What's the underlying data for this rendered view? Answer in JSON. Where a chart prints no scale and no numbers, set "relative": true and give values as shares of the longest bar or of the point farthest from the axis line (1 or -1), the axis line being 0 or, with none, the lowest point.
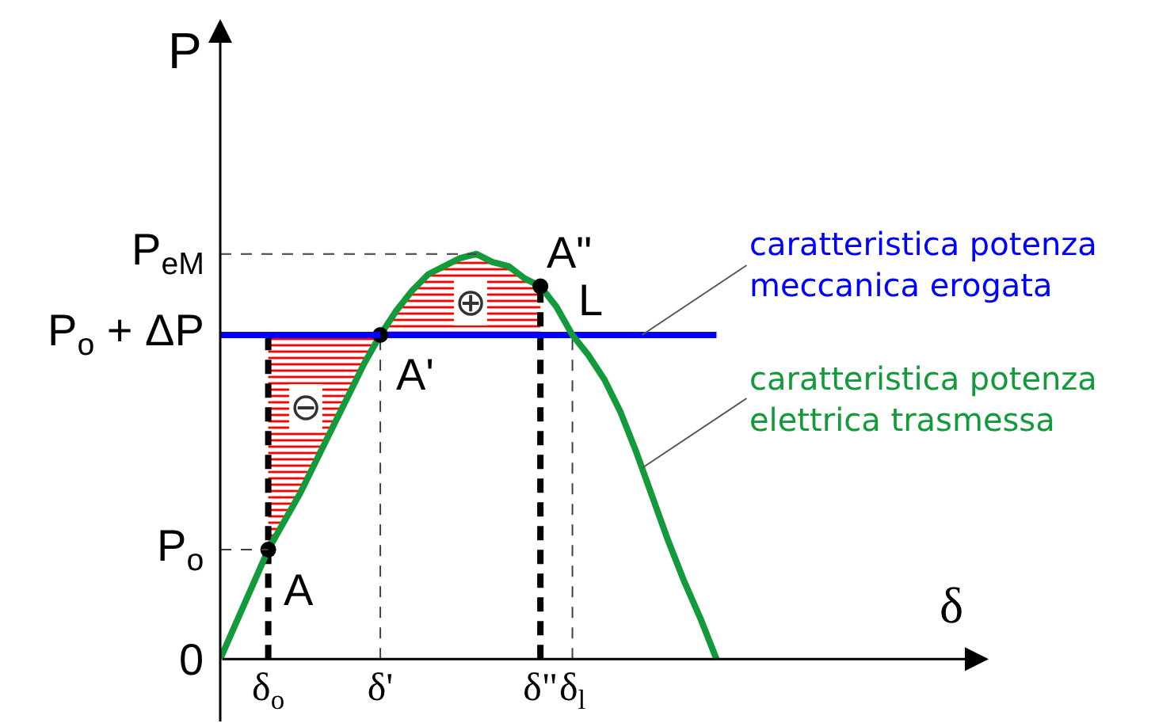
{
  "chart_data": {
    "type": "line",
    "relative": true,
    "xlabel": "δ",
    "ylabel": "P",
    "categories": [
      null,
      null,
      null,
      "δ$_{o}$",
      null,
      null,
      null,
      null,
      null,
      null,
      "δ'",
      null,
      null,
      null,
      null,
      null,
      null,
      null,
      null,
      null,
      "δ\"",
      null,
      "δ$_{l}$",
      null,
      null,
      null,
      null,
      null,
      null,
      null,
      null,
      null,
      null,
      null,
      null,
      null,
      null,
      null,
      null,
      null,
      null,
      null,
      null,
      null,
      null,
      null,
      null,
      null,
      null
    ],
    "grid": false,
    "series": [
      {
        "color": "#ff0000",
        "values": [
          null,
          null,
          null,
          null,
          null,
          null,
          null,
          null,
          null,
          null,
          null,
          null,
          null,
          null,
          null,
          null,
          null,
          null,
          null,
          null,
          null,
          null,
          null,
          null,
          null,
          null,
          null,
          null,
          null,
          null,
          null,
          null,
          null,
          null,
          null,
          null,
          null,
          null,
          null,
          null,
          null,
          null,
          null,
          null,
          null,
          null,
          null,
          null,
          null
        ],
        "lower": [
          null,
          null,
          null,
          null,
          null,
          null,
          null,
          null,
          null,
          null,
          0.8,
          0.8,
          0.8,
          0.8,
          0.8,
          0.8,
          0.8,
          0.8,
          0.8,
          0.8,
          0.8,
          null,
          null,
          null,
          null,
          null,
          null,
          null,
          null,
          null,
          null,
          null,
          null,
          null,
          null,
          null,
          null,
          null,
          null,
          null,
          null,
          null,
          null,
          null,
          null,
          null,
          null,
          null,
          null
        ],
        "upper": [
          null,
          null,
          null,
          null,
          null,
          null,
          null,
          null,
          null,
          null,
          0.8,
          0.86,
          0.91,
          0.95,
          0.97,
          0.99,
          1,
          0.98,
          0.97,
          0.94,
          0.92,
          null,
          null,
          null,
          null,
          null,
          null,
          null,
          null,
          null,
          null,
          null,
          null,
          null,
          null,
          null,
          null,
          null,
          null,
          null,
          null,
          null,
          null,
          null,
          null,
          null,
          null,
          null,
          null
        ]
      },
      {
        "color": "#ff0000",
        "values": [
          null,
          null,
          null,
          null,
          null,
          null,
          null,
          null,
          null,
          null,
          null,
          null,
          null,
          null,
          null,
          null,
          null,
          null,
          null,
          null,
          null,
          null,
          null,
          null,
          null,
          null,
          null,
          null,
          null,
          null,
          null,
          null,
          null,
          null,
          null,
          null,
          null,
          null,
          null,
          null,
          null,
          null,
          null,
          null,
          null,
          null,
          null,
          null,
          null
        ],
        "lower": [
          null,
          null,
          null,
          0.27,
          0.34,
          0.41,
          0.49,
          0.57,
          0.65,
          0.73,
          0.8,
          null,
          null,
          null,
          null,
          null,
          null,
          null,
          null,
          null,
          null,
          null,
          null,
          null,
          null,
          null,
          null,
          null,
          null,
          null,
          null,
          null,
          null,
          null,
          null,
          null,
          null,
          null,
          null,
          null,
          null,
          null,
          null,
          null,
          null,
          null,
          null,
          null,
          null
        ],
        "upper": [
          null,
          null,
          null,
          0.8,
          0.8,
          0.8,
          0.8,
          0.8,
          0.8,
          0.8,
          0.8,
          null,
          null,
          null,
          null,
          null,
          null,
          null,
          null,
          null,
          null,
          null,
          null,
          null,
          null,
          null,
          null,
          null,
          null,
          null,
          null,
          null,
          null,
          null,
          null,
          null,
          null,
          null,
          null,
          null,
          null,
          null,
          null,
          null,
          null,
          null,
          null,
          null,
          null
        ]
      },
      {
        "color": "#404040",
        "line_style": "dashed",
        "x": [
          "δ'",
          "δ'"
        ],
        "values": [
          0,
          0.8
        ]
      },
      {
        "color": "#404040",
        "line_style": "dashed",
        "x": [
          "δ$_{l}$",
          "δ$_{l}$"
        ],
        "values": [
          0,
          0.8
        ]
      },
      {
        "color": "#000000",
        "line_style": "dashed",
        "x": [
          "δ$_{o}$",
          "δ$_{o}$"
        ],
        "values": [
          0,
          0.8
        ]
      },
      {
        "color": "#000000",
        "line_style": "dashed",
        "x": [
          "δ\"",
          "δ\""
        ],
        "values": [
          0,
          0.92
        ]
      },
      {
        "name": "caratteristica potenza meccanica erogata",
        "color": "#0000ff",
        "values": [
          0.8,
          0.8,
          0.8,
          0.8,
          0.8,
          0.8,
          0.8,
          0.8,
          0.8,
          0.8,
          0.8,
          0.8,
          0.8,
          0.8,
          0.8,
          0.8,
          0.8,
          0.8,
          0.8,
          0.8,
          0.8,
          0.8,
          0.8,
          0.8,
          0.8,
          0.8,
          0.8,
          0.8,
          0.8,
          0.8,
          0.8,
          0.8,
          null,
          null,
          null,
          null,
          null,
          null,
          null,
          null,
          null,
          null,
          null,
          null,
          null,
          null,
          null,
          null,
          null
        ]
      },
      {
        "name": "caratteristica potenza elettrica trasmessa",
        "color": "#139a3a",
        "values": [
          0,
          0.09,
          0.18,
          0.27,
          0.34,
          0.41,
          0.49,
          0.57,
          0.65,
          0.73,
          0.8,
          0.86,
          0.91,
          0.95,
          0.97,
          0.99,
          1,
          0.98,
          0.97,
          0.94,
          0.92,
          0.87,
          0.8,
          0.75,
          0.69,
          0.61,
          0.51,
          0.4,
          0.29,
          0.19,
          0.1,
          0,
          null,
          null,
          null,
          null,
          null,
          null,
          null,
          null,
          null,
          null,
          null,
          null,
          null,
          null,
          null,
          null,
          null
        ]
      },
      {
        "type": "scatter",
        "color": "#000000",
        "marker": "circle",
        "values": [
          null,
          null,
          null,
          0.27,
          null,
          null,
          null,
          null,
          null,
          null,
          0.8,
          null,
          null,
          null,
          null,
          null,
          null,
          null,
          null,
          null,
          0.92,
          null,
          null,
          null,
          null,
          null,
          null,
          null,
          null,
          null,
          null,
          null,
          null,
          null,
          null,
          null,
          null,
          null,
          null,
          null,
          null,
          null,
          null,
          null,
          null,
          null,
          null,
          null,
          null
        ]
      }
    ],
    "ref_lines": [
      {
        "axis": "y",
        "value": 0,
        "label": "0"
      },
      {
        "axis": "y",
        "value": 0.27,
        "label": "P$_{o}$",
        "color": "#404040",
        "line_style": "dashed"
      },
      {
        "axis": "y",
        "value": 0.8,
        "label": "P$_{o}$ + ΔP",
        "color": "#0000ff"
      },
      {
        "axis": "y",
        "value": 1,
        "label": "P$_{eM}$",
        "color": "#404040",
        "line_style": "dashed"
      }
    ],
    "annotations": [
      "⊕",
      "⊖",
      {
        "text": "A",
        "x": "δ$_{o}$",
        "y": 0.27
      },
      {
        "text": "A'",
        "x": "δ'",
        "y": 0.8
      },
      {
        "text": "A\"",
        "x": "δ\"",
        "y": 0.92
      },
      {
        "text": "L",
        "x": "δ$_{l}$",
        "y": 0.8
      }
    ]
  }
}
